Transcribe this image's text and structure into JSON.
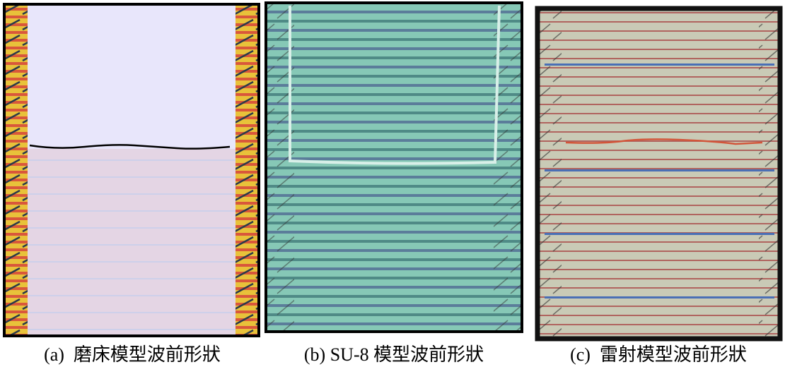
{
  "figure": {
    "panels": [
      {
        "caption": "(a)  磨床模型波前形狀"
      },
      {
        "caption": "(b) SU-8 模型波前形狀"
      },
      {
        "caption": "(c)  雷射模型波前形狀"
      }
    ]
  }
}
